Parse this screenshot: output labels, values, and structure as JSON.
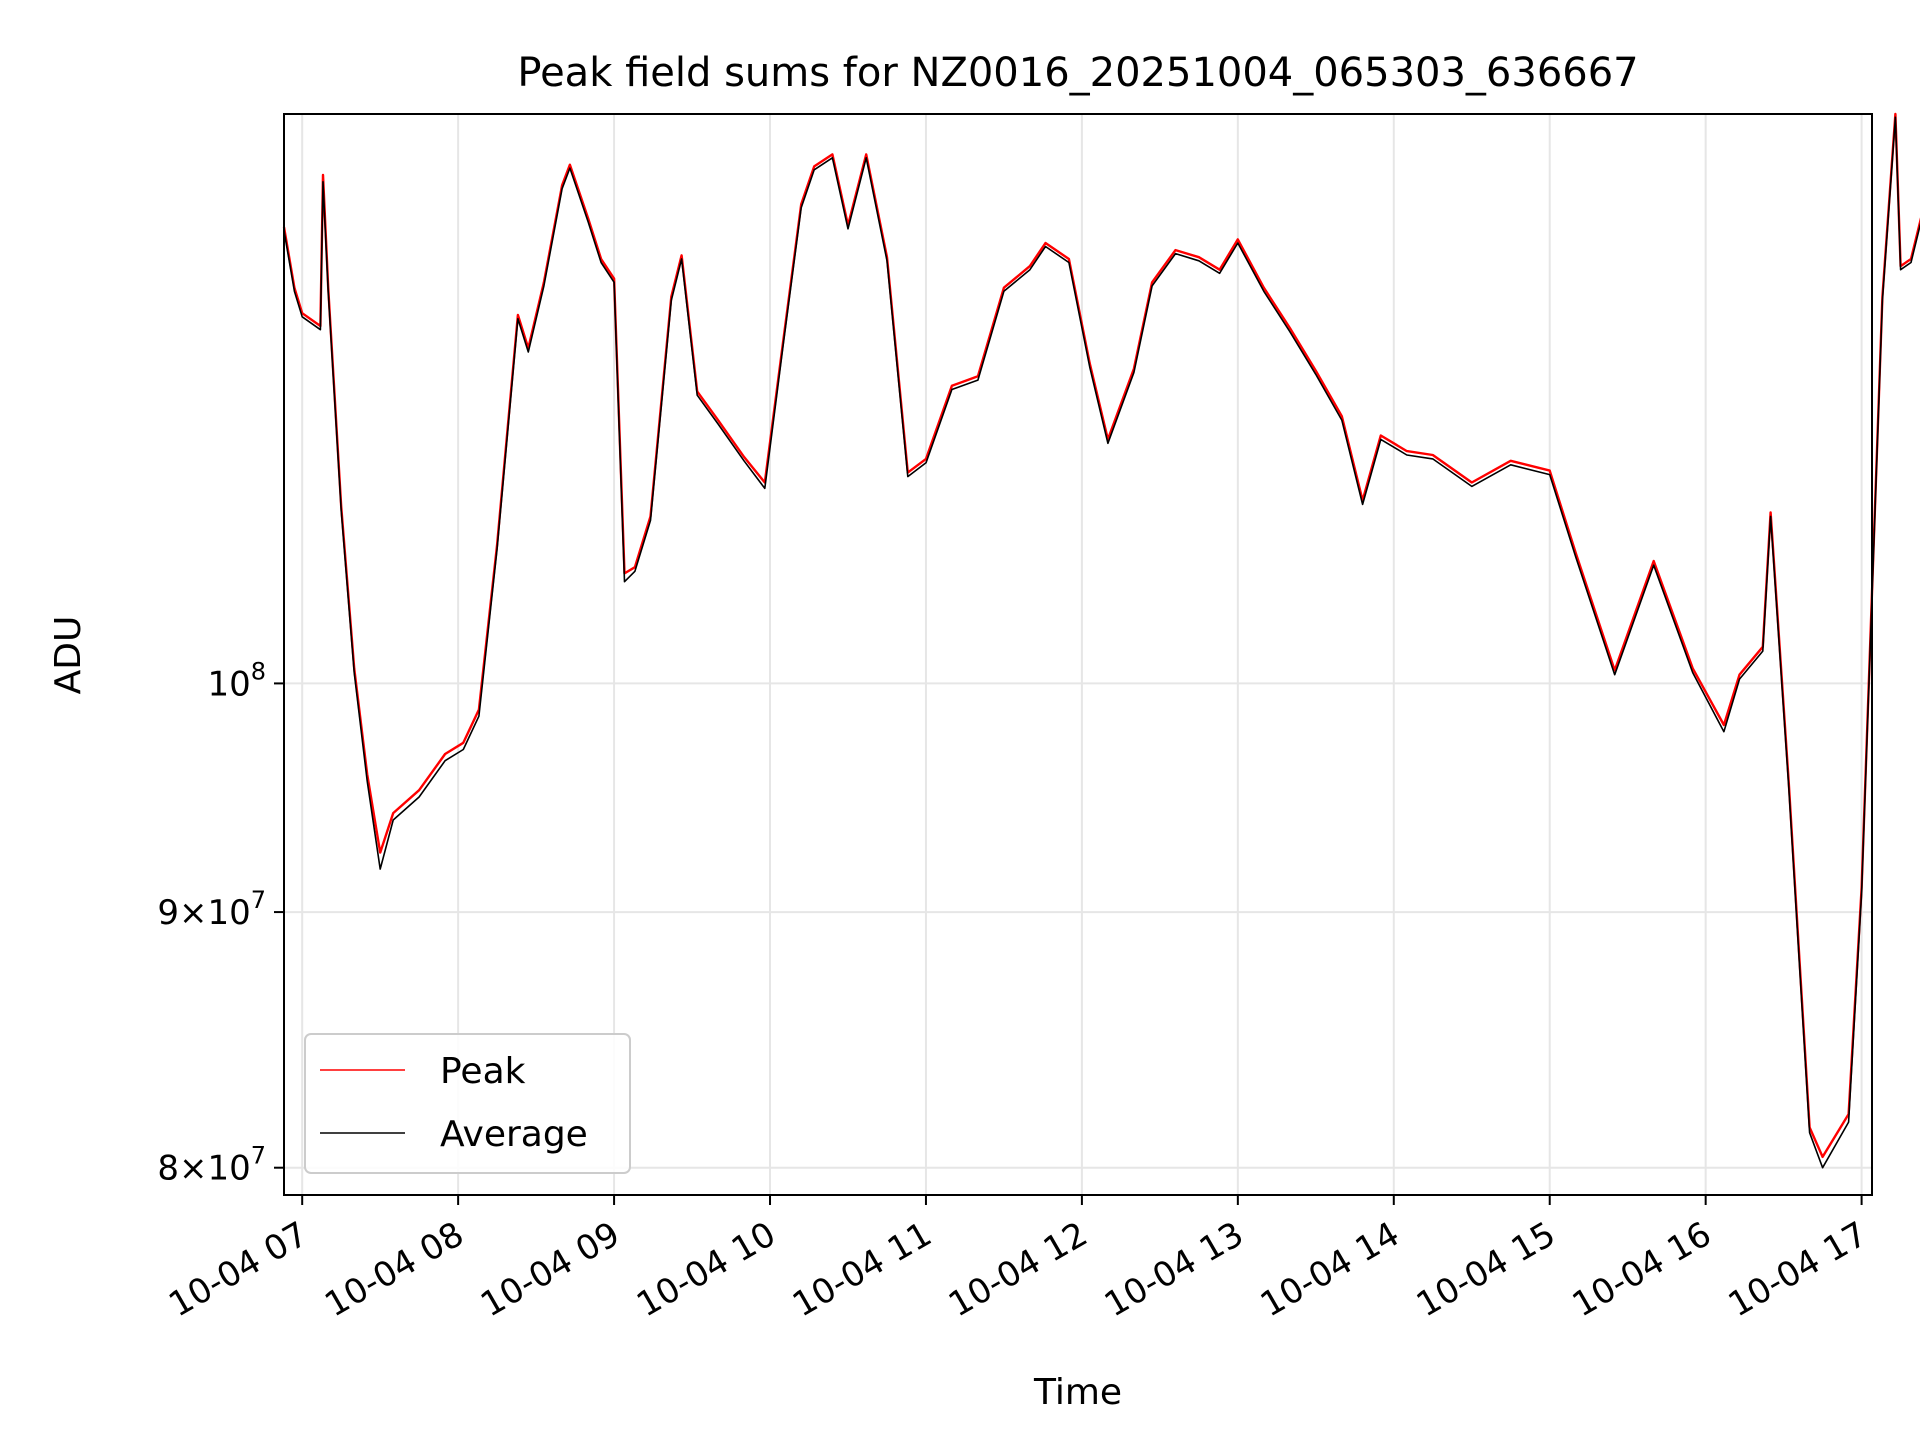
{
  "chart_data": {
    "type": "line",
    "title": "Peak field sums for NZ0016_20251004_065303_636667",
    "xlabel": "Time",
    "ylabel": "ADU",
    "y_scale": "log",
    "ylim": [
      79000000,
      130000000
    ],
    "xlim": [
      "2025-10-04 06:53",
      "2025-10-04 17:04"
    ],
    "grid": true,
    "legend_position": "lower-left",
    "x_ticks": [
      {
        "x": "2025-10-04 07:00",
        "label": "10-04 07"
      },
      {
        "x": "2025-10-04 08:00",
        "label": "10-04 08"
      },
      {
        "x": "2025-10-04 09:00",
        "label": "10-04 09"
      },
      {
        "x": "2025-10-04 10:00",
        "label": "10-04 10"
      },
      {
        "x": "2025-10-04 11:00",
        "label": "10-04 11"
      },
      {
        "x": "2025-10-04 12:00",
        "label": "10-04 12"
      },
      {
        "x": "2025-10-04 13:00",
        "label": "10-04 13"
      },
      {
        "x": "2025-10-04 14:00",
        "label": "10-04 14"
      },
      {
        "x": "2025-10-04 15:00",
        "label": "10-04 15"
      },
      {
        "x": "2025-10-04 16:00",
        "label": "10-04 16"
      },
      {
        "x": "2025-10-04 17:00",
        "label": "10-04 17"
      }
    ],
    "y_ticks": [
      {
        "y": 100000000,
        "mant": "",
        "base": "10",
        "exp": "8"
      },
      {
        "y": 90000000,
        "mant": "9×",
        "base": "10",
        "exp": "7"
      },
      {
        "y": 80000000,
        "mant": "8×",
        "base": "10",
        "exp": "7"
      }
    ],
    "series": [
      {
        "name": "Peak",
        "color": "#ff0000",
        "points": [
          [
            "2025-10-04 06:53",
            123400000
          ],
          [
            "2025-10-04 06:57",
            120000000
          ],
          [
            "2025-10-04 07:00",
            118600000
          ],
          [
            "2025-10-04 07:07",
            117900000
          ],
          [
            "2025-10-04 07:08",
            126400000
          ],
          [
            "2025-10-04 07:10",
            120000000
          ],
          [
            "2025-10-04 07:15",
            108500000
          ],
          [
            "2025-10-04 07:20",
            100700000
          ],
          [
            "2025-10-04 07:25",
            95900000
          ],
          [
            "2025-10-04 07:30",
            92500000
          ],
          [
            "2025-10-04 07:35",
            94200000
          ],
          [
            "2025-10-04 07:45",
            95200000
          ],
          [
            "2025-10-04 07:55",
            96800000
          ],
          [
            "2025-10-04 08:02",
            97300000
          ],
          [
            "2025-10-04 08:08",
            98800000
          ],
          [
            "2025-10-04 08:15",
            106600000
          ],
          [
            "2025-10-04 08:23",
            118500000
          ],
          [
            "2025-10-04 08:27",
            116700000
          ],
          [
            "2025-10-04 08:33",
            120300000
          ],
          [
            "2025-10-04 08:40",
            125800000
          ],
          [
            "2025-10-04 08:43",
            127000000
          ],
          [
            "2025-10-04 08:50",
            123900000
          ],
          [
            "2025-10-04 08:55",
            121600000
          ],
          [
            "2025-10-04 09:00",
            120500000
          ],
          [
            "2025-10-04 09:04",
            105200000
          ],
          [
            "2025-10-04 09:08",
            105500000
          ],
          [
            "2025-10-04 09:14",
            108000000
          ],
          [
            "2025-10-04 09:22",
            119500000
          ],
          [
            "2025-10-04 09:26",
            121800000
          ],
          [
            "2025-10-04 09:32",
            114400000
          ],
          [
            "2025-10-04 09:40",
            112900000
          ],
          [
            "2025-10-04 09:50",
            111000000
          ],
          [
            "2025-10-04 09:58",
            109700000
          ],
          [
            "2025-10-04 10:05",
            117000000
          ],
          [
            "2025-10-04 10:12",
            124700000
          ],
          [
            "2025-10-04 10:17",
            126900000
          ],
          [
            "2025-10-04 10:24",
            127600000
          ],
          [
            "2025-10-04 10:30",
            123500000
          ],
          [
            "2025-10-04 10:37",
            127600000
          ],
          [
            "2025-10-04 10:45",
            121700000
          ],
          [
            "2025-10-04 10:53",
            110200000
          ],
          [
            "2025-10-04 11:00",
            110900000
          ],
          [
            "2025-10-04 11:10",
            114700000
          ],
          [
            "2025-10-04 11:20",
            115200000
          ],
          [
            "2025-10-04 11:30",
            120000000
          ],
          [
            "2025-10-04 11:40",
            121200000
          ],
          [
            "2025-10-04 11:46",
            122500000
          ],
          [
            "2025-10-04 11:55",
            121600000
          ],
          [
            "2025-10-04 12:03",
            115900000
          ],
          [
            "2025-10-04 12:10",
            111900000
          ],
          [
            "2025-10-04 12:20",
            115600000
          ],
          [
            "2025-10-04 12:27",
            120300000
          ],
          [
            "2025-10-04 12:36",
            122100000
          ],
          [
            "2025-10-04 12:45",
            121700000
          ],
          [
            "2025-10-04 12:53",
            121000000
          ],
          [
            "2025-10-04 13:00",
            122700000
          ],
          [
            "2025-10-04 13:10",
            120000000
          ],
          [
            "2025-10-04 13:20",
            117800000
          ],
          [
            "2025-10-04 13:30",
            115500000
          ],
          [
            "2025-10-04 13:40",
            113100000
          ],
          [
            "2025-10-04 13:48",
            108800000
          ],
          [
            "2025-10-04 13:55",
            112100000
          ],
          [
            "2025-10-04 14:05",
            111300000
          ],
          [
            "2025-10-04 14:15",
            111100000
          ],
          [
            "2025-10-04 14:30",
            109700000
          ],
          [
            "2025-10-04 14:45",
            110800000
          ],
          [
            "2025-10-04 15:00",
            110300000
          ],
          [
            "2025-10-04 15:10",
            106200000
          ],
          [
            "2025-10-04 15:25",
            100600000
          ],
          [
            "2025-10-04 15:40",
            105800000
          ],
          [
            "2025-10-04 15:55",
            100700000
          ],
          [
            "2025-10-04 16:07",
            98100000
          ],
          [
            "2025-10-04 16:13",
            100400000
          ],
          [
            "2025-10-04 16:22",
            101700000
          ],
          [
            "2025-10-04 16:25",
            108200000
          ],
          [
            "2025-10-04 16:32",
            95500000
          ],
          [
            "2025-10-04 16:40",
            81500000
          ],
          [
            "2025-10-04 16:45",
            80400000
          ],
          [
            "2025-10-04 16:55",
            82000000
          ],
          [
            "2025-10-04 17:00",
            91000000
          ],
          [
            "2025-10-04 17:08",
            119500000
          ],
          [
            "2025-10-04 17:13",
            130000000
          ],
          [
            "2025-10-04 17:15",
            121200000
          ],
          [
            "2025-10-04 17:19",
            121600000
          ],
          [
            "2025-10-04 17:23",
            124000000
          ]
        ]
      },
      {
        "name": "Average",
        "color": "#000000",
        "points": [
          [
            "2025-10-04 06:53",
            123200000
          ],
          [
            "2025-10-04 06:57",
            119800000
          ],
          [
            "2025-10-04 07:00",
            118400000
          ],
          [
            "2025-10-04 07:07",
            117700000
          ],
          [
            "2025-10-04 07:08",
            126000000
          ],
          [
            "2025-10-04 07:10",
            119800000
          ],
          [
            "2025-10-04 07:15",
            108300000
          ],
          [
            "2025-10-04 07:20",
            100500000
          ],
          [
            "2025-10-04 07:25",
            95600000
          ],
          [
            "2025-10-04 07:30",
            91800000
          ],
          [
            "2025-10-04 07:35",
            93900000
          ],
          [
            "2025-10-04 07:45",
            94900000
          ],
          [
            "2025-10-04 07:55",
            96500000
          ],
          [
            "2025-10-04 08:02",
            97000000
          ],
          [
            "2025-10-04 08:08",
            98500000
          ],
          [
            "2025-10-04 08:15",
            106400000
          ],
          [
            "2025-10-04 08:23",
            118300000
          ],
          [
            "2025-10-04 08:27",
            116500000
          ],
          [
            "2025-10-04 08:33",
            120100000
          ],
          [
            "2025-10-04 08:40",
            125600000
          ],
          [
            "2025-10-04 08:43",
            126800000
          ],
          [
            "2025-10-04 08:50",
            123700000
          ],
          [
            "2025-10-04 08:55",
            121400000
          ],
          [
            "2025-10-04 09:00",
            120300000
          ],
          [
            "2025-10-04 09:04",
            104800000
          ],
          [
            "2025-10-04 09:08",
            105300000
          ],
          [
            "2025-10-04 09:14",
            107800000
          ],
          [
            "2025-10-04 09:22",
            119300000
          ],
          [
            "2025-10-04 09:26",
            121600000
          ],
          [
            "2025-10-04 09:32",
            114200000
          ],
          [
            "2025-10-04 09:40",
            112700000
          ],
          [
            "2025-10-04 09:50",
            110800000
          ],
          [
            "2025-10-04 09:58",
            109400000
          ],
          [
            "2025-10-04 10:05",
            116800000
          ],
          [
            "2025-10-04 10:12",
            124500000
          ],
          [
            "2025-10-04 10:17",
            126700000
          ],
          [
            "2025-10-04 10:24",
            127400000
          ],
          [
            "2025-10-04 10:30",
            123300000
          ],
          [
            "2025-10-04 10:37",
            127400000
          ],
          [
            "2025-10-04 10:45",
            121500000
          ],
          [
            "2025-10-04 10:53",
            110000000
          ],
          [
            "2025-10-04 11:00",
            110700000
          ],
          [
            "2025-10-04 11:10",
            114500000
          ],
          [
            "2025-10-04 11:20",
            115000000
          ],
          [
            "2025-10-04 11:30",
            119800000
          ],
          [
            "2025-10-04 11:40",
            121000000
          ],
          [
            "2025-10-04 11:46",
            122300000
          ],
          [
            "2025-10-04 11:55",
            121400000
          ],
          [
            "2025-10-04 12:03",
            115700000
          ],
          [
            "2025-10-04 12:10",
            111700000
          ],
          [
            "2025-10-04 12:20",
            115400000
          ],
          [
            "2025-10-04 12:27",
            120100000
          ],
          [
            "2025-10-04 12:36",
            121900000
          ],
          [
            "2025-10-04 12:45",
            121500000
          ],
          [
            "2025-10-04 12:53",
            120800000
          ],
          [
            "2025-10-04 13:00",
            122500000
          ],
          [
            "2025-10-04 13:10",
            119800000
          ],
          [
            "2025-10-04 13:20",
            117600000
          ],
          [
            "2025-10-04 13:30",
            115300000
          ],
          [
            "2025-10-04 13:40",
            112900000
          ],
          [
            "2025-10-04 13:48",
            108600000
          ],
          [
            "2025-10-04 13:55",
            111900000
          ],
          [
            "2025-10-04 14:05",
            111100000
          ],
          [
            "2025-10-04 14:15",
            110900000
          ],
          [
            "2025-10-04 14:30",
            109500000
          ],
          [
            "2025-10-04 14:45",
            110600000
          ],
          [
            "2025-10-04 15:00",
            110100000
          ],
          [
            "2025-10-04 15:10",
            106000000
          ],
          [
            "2025-10-04 15:25",
            100400000
          ],
          [
            "2025-10-04 15:40",
            105600000
          ],
          [
            "2025-10-04 15:55",
            100500000
          ],
          [
            "2025-10-04 16:07",
            97800000
          ],
          [
            "2025-10-04 16:13",
            100200000
          ],
          [
            "2025-10-04 16:22",
            101500000
          ],
          [
            "2025-10-04 16:25",
            108000000
          ],
          [
            "2025-10-04 16:32",
            95300000
          ],
          [
            "2025-10-04 16:40",
            81300000
          ],
          [
            "2025-10-04 16:45",
            80000000
          ],
          [
            "2025-10-04 16:55",
            81700000
          ],
          [
            "2025-10-04 17:00",
            90800000
          ],
          [
            "2025-10-04 17:08",
            119300000
          ],
          [
            "2025-10-04 17:13",
            129800000
          ],
          [
            "2025-10-04 17:15",
            121000000
          ],
          [
            "2025-10-04 17:19",
            121400000
          ],
          [
            "2025-10-04 17:23",
            123800000
          ]
        ]
      }
    ]
  }
}
